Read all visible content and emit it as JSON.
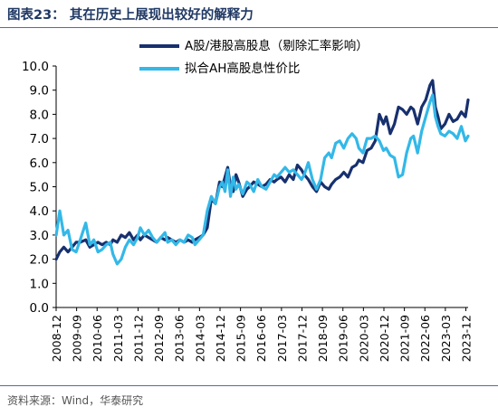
{
  "figure": {
    "title": "图表23：  其在历史上展现出较好的解释力",
    "source": "资料来源：Wind，华泰研究"
  },
  "colors": {
    "navy": "#17306e",
    "cyan": "#33b8e8",
    "axis": "#000000"
  },
  "chart_data": {
    "type": "line",
    "ylim": [
      0,
      10
    ],
    "yticks": [
      "0.0",
      "1.0",
      "2.0",
      "3.0",
      "4.0",
      "5.0",
      "6.0",
      "7.0",
      "8.0",
      "9.0",
      "10.0"
    ],
    "xlim": [
      2008.917,
      2024.0
    ],
    "xtick_labels": [
      "2008-12",
      "2009-09",
      "2010-06",
      "2011-03",
      "2011-12",
      "2012-09",
      "2013-06",
      "2014-03",
      "2014-12",
      "2015-09",
      "2016-06",
      "2017-03",
      "2017-12",
      "2018-09",
      "2019-06",
      "2020-03",
      "2020-12",
      "2021-09",
      "2022-06",
      "2023-03",
      "2023-12"
    ],
    "legend_position": "top",
    "grid": false,
    "series": [
      {
        "name": "A股/港股高股息（剔除汇率影响）",
        "color": "#17306e",
        "x": [
          2008.92,
          2009.05,
          2009.2,
          2009.35,
          2009.5,
          2009.65,
          2009.8,
          2010.0,
          2010.15,
          2010.3,
          2010.45,
          2010.6,
          2010.75,
          2010.9,
          2011.0,
          2011.15,
          2011.3,
          2011.45,
          2011.6,
          2011.75,
          2011.9,
          2012.0,
          2012.15,
          2012.3,
          2012.45,
          2012.6,
          2012.75,
          2012.9,
          2013.0,
          2013.15,
          2013.3,
          2013.45,
          2013.6,
          2013.75,
          2013.9,
          2014.0,
          2014.15,
          2014.3,
          2014.45,
          2014.6,
          2014.75,
          2014.9,
          2015.0,
          2015.1,
          2015.2,
          2015.3,
          2015.4,
          2015.5,
          2015.6,
          2015.75,
          2015.9,
          2016.0,
          2016.15,
          2016.3,
          2016.45,
          2016.6,
          2016.75,
          2016.9,
          2017.0,
          2017.15,
          2017.3,
          2017.45,
          2017.6,
          2017.75,
          2017.9,
          2018.0,
          2018.15,
          2018.3,
          2018.45,
          2018.6,
          2018.75,
          2018.9,
          2019.0,
          2019.15,
          2019.3,
          2019.45,
          2019.6,
          2019.75,
          2019.9,
          2020.0,
          2020.15,
          2020.3,
          2020.45,
          2020.6,
          2020.75,
          2020.9,
          2021.0,
          2021.15,
          2021.3,
          2021.45,
          2021.6,
          2021.75,
          2021.9,
          2022.0,
          2022.15,
          2022.3,
          2022.45,
          2022.6,
          2022.7,
          2022.8,
          2022.9,
          2023.0,
          2023.15,
          2023.3,
          2023.45,
          2023.6,
          2023.75,
          2023.9,
          2024.0
        ],
        "values": [
          2.0,
          2.3,
          2.5,
          2.3,
          2.5,
          2.7,
          2.7,
          2.8,
          2.5,
          2.6,
          2.7,
          2.6,
          2.7,
          2.6,
          2.8,
          2.7,
          3.0,
          2.9,
          3.1,
          2.8,
          3.0,
          2.8,
          3.0,
          2.9,
          2.8,
          2.7,
          2.9,
          2.8,
          2.9,
          2.8,
          2.7,
          2.8,
          2.7,
          2.8,
          2.7,
          2.8,
          2.9,
          3.0,
          3.3,
          4.5,
          4.3,
          5.2,
          5.0,
          5.4,
          5.8,
          5.0,
          4.8,
          5.5,
          5.2,
          4.6,
          4.9,
          5.0,
          5.2,
          5.1,
          5.0,
          5.1,
          5.3,
          5.2,
          5.3,
          5.4,
          5.2,
          5.5,
          5.3,
          5.9,
          5.7,
          5.5,
          5.3,
          5.0,
          4.8,
          5.2,
          5.0,
          4.9,
          5.1,
          5.3,
          5.4,
          5.6,
          5.4,
          5.8,
          5.9,
          6.1,
          6.0,
          6.5,
          6.6,
          6.9,
          8.0,
          7.6,
          7.9,
          7.2,
          7.6,
          8.3,
          8.2,
          8.0,
          8.3,
          8.2,
          7.6,
          8.3,
          8.6,
          9.2,
          9.4,
          8.3,
          7.9,
          7.4,
          7.6,
          8.0,
          7.7,
          7.8,
          8.1,
          7.9,
          8.6
        ]
      },
      {
        "name": "拟合AH高股息性价比",
        "color": "#33b8e8",
        "x": [
          2008.92,
          2009.05,
          2009.2,
          2009.35,
          2009.5,
          2009.65,
          2009.8,
          2010.0,
          2010.15,
          2010.3,
          2010.45,
          2010.6,
          2010.75,
          2010.9,
          2011.0,
          2011.15,
          2011.3,
          2011.45,
          2011.6,
          2011.75,
          2011.9,
          2012.0,
          2012.15,
          2012.3,
          2012.45,
          2012.6,
          2012.75,
          2012.9,
          2013.0,
          2013.15,
          2013.3,
          2013.45,
          2013.6,
          2013.75,
          2013.9,
          2014.0,
          2014.15,
          2014.3,
          2014.45,
          2014.6,
          2014.75,
          2014.9,
          2015.0,
          2015.1,
          2015.2,
          2015.3,
          2015.4,
          2015.5,
          2015.6,
          2015.75,
          2015.9,
          2016.0,
          2016.15,
          2016.3,
          2016.45,
          2016.6,
          2016.75,
          2016.9,
          2017.0,
          2017.15,
          2017.3,
          2017.45,
          2017.6,
          2017.75,
          2017.9,
          2018.0,
          2018.15,
          2018.3,
          2018.45,
          2018.6,
          2018.75,
          2018.9,
          2019.0,
          2019.15,
          2019.3,
          2019.45,
          2019.6,
          2019.75,
          2019.9,
          2020.0,
          2020.15,
          2020.3,
          2020.45,
          2020.6,
          2020.75,
          2020.9,
          2021.0,
          2021.15,
          2021.3,
          2021.45,
          2021.6,
          2021.75,
          2021.9,
          2022.0,
          2022.15,
          2022.3,
          2022.45,
          2022.6,
          2022.7,
          2022.8,
          2022.9,
          2023.0,
          2023.15,
          2023.3,
          2023.45,
          2023.6,
          2023.75,
          2023.9,
          2024.0
        ],
        "values": [
          3.0,
          4.0,
          3.0,
          3.2,
          2.4,
          2.3,
          2.8,
          3.5,
          2.6,
          2.8,
          2.3,
          2.4,
          2.6,
          2.7,
          2.2,
          1.8,
          2.0,
          2.5,
          2.8,
          2.6,
          2.9,
          3.3,
          3.0,
          3.2,
          2.9,
          2.7,
          2.9,
          3.1,
          2.7,
          2.8,
          2.6,
          2.8,
          2.7,
          3.0,
          2.9,
          2.6,
          2.8,
          3.0,
          4.0,
          4.6,
          4.3,
          5.0,
          5.2,
          4.8,
          5.7,
          4.6,
          5.4,
          4.9,
          5.1,
          4.7,
          5.2,
          5.1,
          4.8,
          5.3,
          5.0,
          4.9,
          5.2,
          5.5,
          5.4,
          5.6,
          5.8,
          5.6,
          5.7,
          5.5,
          5.3,
          5.5,
          6.0,
          5.3,
          4.9,
          5.3,
          6.2,
          6.4,
          6.2,
          6.8,
          6.9,
          6.6,
          7.0,
          7.2,
          7.0,
          6.6,
          6.4,
          7.0,
          7.0,
          7.1,
          6.9,
          6.5,
          6.6,
          6.3,
          6.2,
          5.4,
          5.5,
          6.4,
          7.0,
          7.1,
          6.4,
          7.3,
          7.9,
          8.5,
          8.8,
          7.9,
          7.5,
          7.2,
          7.1,
          7.3,
          7.2,
          7.0,
          7.5,
          6.9,
          7.1
        ]
      }
    ]
  }
}
